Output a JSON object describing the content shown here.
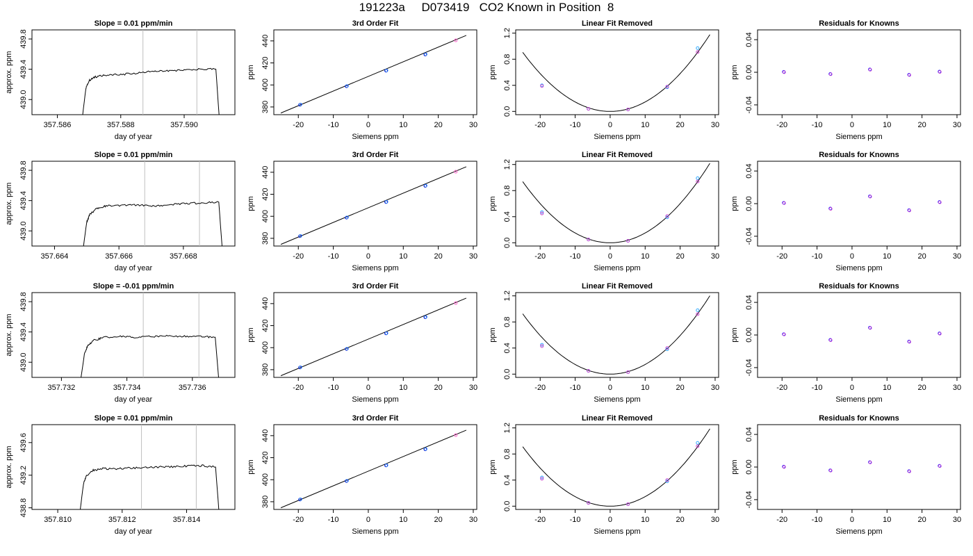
{
  "page_title": "191223a     D073419   CO2 Known in Position  8",
  "chart_data": [
    {
      "type": "line",
      "row": 0,
      "kind": "trace",
      "title": "Slope =  0.01  ppm/min",
      "xlabel": "day of year",
      "ylabel": "approx. ppm",
      "xlim": [
        357.5852,
        357.5916
      ],
      "ylim": [
        438.8,
        439.92
      ],
      "xticks": [
        357.586,
        357.588,
        357.59
      ],
      "xtick_labels": [
        "357.586",
        "357.588",
        "357.590"
      ],
      "yticks": [
        439.0,
        439.4,
        439.8
      ],
      "ytick_labels": [
        "439.0",
        "439.4",
        "439.8"
      ],
      "vlines": [
        357.5887,
        357.5904
      ],
      "x": [
        357.5868,
        357.5869,
        357.587,
        357.5872,
        357.5875,
        357.588,
        357.5885,
        357.589,
        357.5895,
        357.59,
        357.5905,
        357.591,
        357.5911
      ],
      "y": [
        438.8,
        439.15,
        439.25,
        439.3,
        439.32,
        439.33,
        439.35,
        439.37,
        439.38,
        439.39,
        439.4,
        439.4,
        438.8
      ]
    },
    {
      "type": "scatter",
      "row": 0,
      "kind": "fit",
      "title": "3rd Order Fit",
      "xlabel": "Siemens ppm",
      "ylabel": "ppm",
      "xlim": [
        -27,
        31
      ],
      "ylim": [
        373,
        450
      ],
      "xticks": [
        -20,
        -10,
        0,
        10,
        20,
        30
      ],
      "xtick_labels": [
        "-20",
        "-10",
        "0",
        "10",
        "20",
        "30"
      ],
      "yticks": [
        380,
        400,
        420,
        440
      ],
      "ytick_labels": [
        "380",
        "400",
        "420",
        "440"
      ],
      "x": [
        -19.5,
        -6.2,
        5.1,
        16.3,
        25.0
      ],
      "y": [
        382,
        398.8,
        412.9,
        427.6,
        440.5
      ],
      "fit_x": [
        -25,
        28
      ],
      "fit_y": [
        374.5,
        445
      ]
    },
    {
      "type": "scatter",
      "row": 0,
      "kind": "resid",
      "title": "Linear Fit Removed",
      "xlabel": "Siemens ppm",
      "ylabel": "ppm",
      "xlim": [
        -27,
        31
      ],
      "ylim": [
        -0.05,
        1.25
      ],
      "xticks": [
        -20,
        -10,
        0,
        10,
        20,
        30
      ],
      "xtick_labels": [
        "-20",
        "-10",
        "0",
        "10",
        "20",
        "30"
      ],
      "yticks": [
        0.0,
        0.4,
        0.8,
        1.2
      ],
      "ytick_labels": [
        "0.0",
        "0.4",
        "0.8",
        "1.2"
      ],
      "x": [
        -19.5,
        -6.2,
        5.1,
        16.3,
        25.0
      ],
      "y_a": [
        0.4,
        0.04,
        0.03,
        0.37,
        0.97
      ],
      "y_b": [
        0.39,
        0.04,
        0.03,
        0.38,
        0.91
      ],
      "curve_a": 0.00145
    },
    {
      "type": "scatter",
      "row": 0,
      "kind": "known",
      "title": "Residuals for Knowns",
      "xlabel": "Siemens ppm",
      "ylabel": "ppm",
      "xlim": [
        -27,
        31
      ],
      "ylim": [
        -0.052,
        0.052
      ],
      "xticks": [
        -20,
        -10,
        0,
        10,
        20,
        30
      ],
      "xtick_labels": [
        "-20",
        "-10",
        "0",
        "10",
        "20",
        "30"
      ],
      "yticks": [
        -0.04,
        0.0,
        0.04
      ],
      "ytick_labels": [
        "-0.04",
        "0.00",
        "0.04"
      ],
      "x": [
        -19.5,
        -6.2,
        5.1,
        16.3,
        25.0
      ],
      "y": [
        0.0005,
        -0.002,
        0.0035,
        -0.003,
        0.0008
      ]
    },
    {
      "type": "line",
      "row": 1,
      "kind": "trace",
      "title": "Slope =  0.01  ppm/min",
      "xlabel": "day of year",
      "ylabel": "approx. ppm",
      "xlim": [
        357.6633,
        357.6696
      ],
      "ylim": [
        438.8,
        439.92
      ],
      "xticks": [
        357.664,
        357.666,
        357.668
      ],
      "xtick_labels": [
        "357.664",
        "357.666",
        "357.668"
      ],
      "yticks": [
        439.0,
        439.4,
        439.8
      ],
      "ytick_labels": [
        "439.0",
        "439.4",
        "439.8"
      ],
      "vlines": [
        357.6668,
        357.6685
      ],
      "x": [
        357.6649,
        357.665,
        357.6651,
        357.6653,
        357.6656,
        357.6661,
        357.6666,
        357.6671,
        357.6676,
        357.6681,
        357.6686,
        357.6691,
        357.6692
      ],
      "y": [
        438.8,
        439.12,
        439.22,
        439.29,
        439.33,
        439.34,
        439.34,
        439.33,
        439.35,
        439.36,
        439.37,
        439.38,
        438.8
      ]
    },
    {
      "type": "scatter",
      "row": 1,
      "kind": "fit",
      "title": "3rd Order Fit",
      "xlabel": "Siemens ppm",
      "ylabel": "ppm",
      "xlim": [
        -27,
        31
      ],
      "ylim": [
        373,
        450
      ],
      "xticks": [
        -20,
        -10,
        0,
        10,
        20,
        30
      ],
      "xtick_labels": [
        "-20",
        "-10",
        "0",
        "10",
        "20",
        "30"
      ],
      "yticks": [
        380,
        400,
        420,
        440
      ],
      "ytick_labels": [
        "380",
        "400",
        "420",
        "440"
      ],
      "x": [
        -19.5,
        -6.2,
        5.1,
        16.3,
        25.0
      ],
      "y": [
        382,
        398.8,
        412.9,
        427.6,
        440.5
      ],
      "fit_x": [
        -25,
        28
      ],
      "fit_y": [
        374.5,
        445
      ]
    },
    {
      "type": "scatter",
      "row": 1,
      "kind": "resid",
      "title": "Linear Fit Removed",
      "xlabel": "Siemens ppm",
      "ylabel": "ppm",
      "xlim": [
        -27,
        31
      ],
      "ylim": [
        -0.05,
        1.25
      ],
      "xticks": [
        -20,
        -10,
        0,
        10,
        20,
        30
      ],
      "xtick_labels": [
        "-20",
        "-10",
        "0",
        "10",
        "20",
        "30"
      ],
      "yticks": [
        0.0,
        0.4,
        0.8,
        1.2
      ],
      "ytick_labels": [
        "0.0",
        "0.4",
        "0.8",
        "1.2"
      ],
      "x": [
        -19.5,
        -6.2,
        5.1,
        16.3,
        25.0
      ],
      "y_a": [
        0.47,
        0.05,
        0.03,
        0.39,
        0.99
      ],
      "y_b": [
        0.45,
        0.05,
        0.03,
        0.41,
        0.94
      ],
      "curve_a": 0.0015
    },
    {
      "type": "scatter",
      "row": 1,
      "kind": "known",
      "title": "Residuals for Knowns",
      "xlabel": "Siemens ppm",
      "ylabel": "ppm",
      "xlim": [
        -27,
        31
      ],
      "ylim": [
        -0.052,
        0.052
      ],
      "xticks": [
        -20,
        -10,
        0,
        10,
        20,
        30
      ],
      "xtick_labels": [
        "-20",
        "-10",
        "0",
        "10",
        "20",
        "30"
      ],
      "yticks": [
        -0.04,
        0.0,
        0.04
      ],
      "ytick_labels": [
        "-0.04",
        "0.00",
        "0.04"
      ],
      "x": [
        -19.5,
        -6.2,
        5.1,
        16.3,
        25.0
      ],
      "y": [
        0.001,
        -0.006,
        0.009,
        -0.008,
        0.002
      ]
    },
    {
      "type": "line",
      "row": 2,
      "kind": "trace",
      "title": "Slope =  -0.01  ppm/min",
      "xlabel": "day of year",
      "ylabel": "approx. ppm",
      "xlim": [
        357.7311,
        357.7373
      ],
      "ylim": [
        438.8,
        439.92
      ],
      "xticks": [
        357.732,
        357.734,
        357.736
      ],
      "xtick_labels": [
        "357.732",
        "357.734",
        "357.736"
      ],
      "yticks": [
        439.0,
        439.4,
        439.8
      ],
      "ytick_labels": [
        "439.0",
        "439.4",
        "439.8"
      ],
      "vlines": [
        357.7345,
        357.7362
      ],
      "x": [
        357.7326,
        357.7327,
        357.7328,
        357.733,
        357.7333,
        357.7338,
        357.7343,
        357.7348,
        357.7353,
        357.7358,
        357.7363,
        357.7367,
        357.7368
      ],
      "y": [
        438.8,
        439.1,
        439.22,
        439.29,
        439.33,
        439.34,
        439.33,
        439.34,
        439.35,
        439.34,
        439.34,
        439.33,
        438.8
      ]
    },
    {
      "type": "scatter",
      "row": 2,
      "kind": "fit",
      "title": "3rd Order Fit",
      "xlabel": "Siemens ppm",
      "ylabel": "ppm",
      "xlim": [
        -27,
        31
      ],
      "ylim": [
        373,
        450
      ],
      "xticks": [
        -20,
        -10,
        0,
        10,
        20,
        30
      ],
      "xtick_labels": [
        "-20",
        "-10",
        "0",
        "10",
        "20",
        "30"
      ],
      "yticks": [
        380,
        400,
        420,
        440
      ],
      "ytick_labels": [
        "380",
        "400",
        "420",
        "440"
      ],
      "x": [
        -19.5,
        -6.2,
        5.1,
        16.3,
        25.0
      ],
      "y": [
        382,
        398.8,
        412.9,
        427.6,
        440.5
      ],
      "fit_x": [
        -25,
        28
      ],
      "fit_y": [
        374.5,
        445
      ]
    },
    {
      "type": "scatter",
      "row": 2,
      "kind": "resid",
      "title": "Linear Fit Removed",
      "xlabel": "Siemens ppm",
      "ylabel": "ppm",
      "xlim": [
        -27,
        31
      ],
      "ylim": [
        -0.05,
        1.25
      ],
      "xticks": [
        -20,
        -10,
        0,
        10,
        20,
        30
      ],
      "xtick_labels": [
        "-20",
        "-10",
        "0",
        "10",
        "20",
        "30"
      ],
      "yticks": [
        0.0,
        0.4,
        0.8,
        1.2
      ],
      "ytick_labels": [
        "0.0",
        "0.4",
        "0.8",
        "1.2"
      ],
      "x": [
        -19.5,
        -6.2,
        5.1,
        16.3,
        25.0
      ],
      "y_a": [
        0.45,
        0.05,
        0.03,
        0.38,
        0.98
      ],
      "y_b": [
        0.43,
        0.05,
        0.03,
        0.4,
        0.92
      ],
      "curve_a": 0.00148
    },
    {
      "type": "scatter",
      "row": 2,
      "kind": "known",
      "title": "Residuals for Knowns",
      "xlabel": "Siemens ppm",
      "ylabel": "ppm",
      "xlim": [
        -27,
        31
      ],
      "ylim": [
        -0.052,
        0.052
      ],
      "xticks": [
        -20,
        -10,
        0,
        10,
        20,
        30
      ],
      "xtick_labels": [
        "-20",
        "-10",
        "0",
        "10",
        "20",
        "30"
      ],
      "yticks": [
        -0.04,
        0.0,
        0.04
      ],
      "ytick_labels": [
        "-0.04",
        "0.00",
        "0.04"
      ],
      "x": [
        -19.5,
        -6.2,
        5.1,
        16.3,
        25.0
      ],
      "y": [
        0.001,
        -0.006,
        0.009,
        -0.008,
        0.002
      ]
    },
    {
      "type": "line",
      "row": 3,
      "kind": "trace",
      "title": "Slope =  0.01  ppm/min",
      "xlabel": "day of year",
      "ylabel": "approx. ppm",
      "xlim": [
        357.8092,
        357.8155
      ],
      "ylim": [
        438.78,
        439.82
      ],
      "xticks": [
        357.81,
        357.812,
        357.814
      ],
      "xtick_labels": [
        "357.810",
        "357.812",
        "357.814"
      ],
      "yticks": [
        438.8,
        439.2,
        439.6
      ],
      "ytick_labels": [
        "438.8",
        "439.2",
        "439.6"
      ],
      "vlines": [
        357.8126,
        357.8143
      ],
      "x": [
        357.8107,
        357.8108,
        357.8109,
        357.8111,
        357.8114,
        357.8119,
        357.8124,
        357.8129,
        357.8134,
        357.8139,
        357.8144,
        357.8149,
        357.815
      ],
      "y": [
        438.78,
        439.1,
        439.2,
        439.26,
        439.28,
        439.28,
        439.29,
        439.3,
        439.3,
        439.31,
        439.32,
        439.3,
        438.78
      ]
    },
    {
      "type": "scatter",
      "row": 3,
      "kind": "fit",
      "title": "3rd Order Fit",
      "xlabel": "Siemens ppm",
      "ylabel": "ppm",
      "xlim": [
        -27,
        31
      ],
      "ylim": [
        373,
        450
      ],
      "xticks": [
        -20,
        -10,
        0,
        10,
        20,
        30
      ],
      "xtick_labels": [
        "-20",
        "-10",
        "0",
        "10",
        "20",
        "30"
      ],
      "yticks": [
        380,
        400,
        420,
        440
      ],
      "ytick_labels": [
        "380",
        "400",
        "420",
        "440"
      ],
      "x": [
        -19.5,
        -6.2,
        5.1,
        16.3,
        25.0
      ],
      "y": [
        382,
        398.8,
        412.9,
        427.6,
        440.5
      ],
      "fit_x": [
        -25,
        28
      ],
      "fit_y": [
        374.5,
        445
      ]
    },
    {
      "type": "scatter",
      "row": 3,
      "kind": "resid",
      "title": "Linear Fit Removed",
      "xlabel": "Siemens ppm",
      "ylabel": "ppm",
      "xlim": [
        -27,
        31
      ],
      "ylim": [
        -0.05,
        1.25
      ],
      "xticks": [
        -20,
        -10,
        0,
        10,
        20,
        30
      ],
      "xtick_labels": [
        "-20",
        "-10",
        "0",
        "10",
        "20",
        "30"
      ],
      "yticks": [
        0.0,
        0.4,
        0.8,
        1.2
      ],
      "ytick_labels": [
        "0.0",
        "0.4",
        "0.8",
        "1.2"
      ],
      "x": [
        -19.5,
        -6.2,
        5.1,
        16.3,
        25.0
      ],
      "y_a": [
        0.44,
        0.05,
        0.03,
        0.38,
        0.97
      ],
      "y_b": [
        0.42,
        0.05,
        0.03,
        0.4,
        0.92
      ],
      "curve_a": 0.00146
    },
    {
      "type": "scatter",
      "row": 3,
      "kind": "known",
      "title": "Residuals for Knowns",
      "xlabel": "Siemens ppm",
      "ylabel": "ppm",
      "xlim": [
        -27,
        31
      ],
      "ylim": [
        -0.052,
        0.052
      ],
      "xticks": [
        -20,
        -10,
        0,
        10,
        20,
        30
      ],
      "xtick_labels": [
        "-20",
        "-10",
        "0",
        "10",
        "20",
        "30"
      ],
      "yticks": [
        -0.04,
        0.0,
        0.04
      ],
      "ytick_labels": [
        "-0.04",
        "0.00",
        "0.04"
      ],
      "x": [
        -19.5,
        -6.2,
        5.1,
        16.3,
        25.0
      ],
      "y": [
        0.0005,
        -0.004,
        0.006,
        -0.005,
        0.0015
      ]
    }
  ]
}
